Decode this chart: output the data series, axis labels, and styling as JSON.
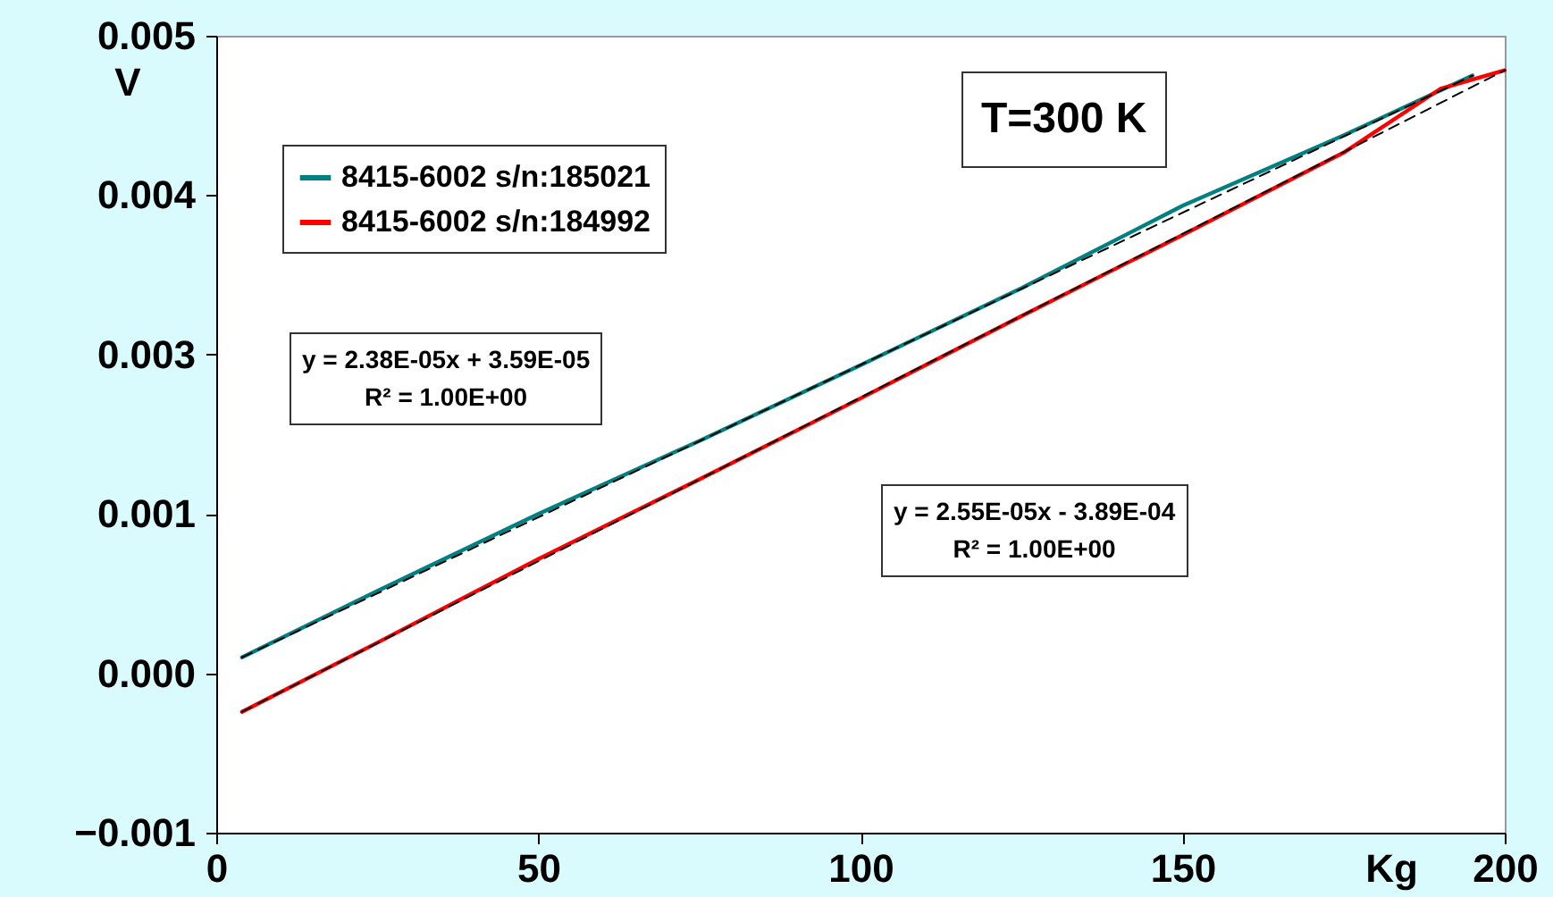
{
  "chart_data": {
    "type": "line",
    "xlabel": "Kg",
    "ylabel": "V",
    "xlim": [
      0,
      200
    ],
    "xticks": [
      0,
      50,
      100,
      150,
      200
    ],
    "ylim": [
      -0.001,
      0.005
    ],
    "yticks": [
      -0.001,
      {
        "value": 0.0002,
        "label": "0.000"
      },
      {
        "value": 0.0014,
        "label": "0.001"
      },
      {
        "value": 0.0026,
        "label": "0.003"
      },
      {
        "value": 0.0038,
        "label": "0.004"
      },
      0.005
    ],
    "series": [
      {
        "name": "8415-6002 s/n:185021",
        "color": "#008080",
        "x": [
          4,
          25,
          50,
          75,
          100,
          125,
          150,
          175,
          195
        ],
        "values": [
          0.00032,
          0.00082,
          0.0014,
          0.00195,
          0.00252,
          0.0031,
          0.00372,
          0.00425,
          0.0047
        ]
      },
      {
        "name": "8415-6002 s/n:184992",
        "color": "#ff0000",
        "x": [
          4,
          25,
          50,
          75,
          100,
          125,
          150,
          175,
          190,
          200
        ],
        "values": [
          -9e-05,
          0.00043,
          0.00106,
          0.00166,
          0.00227,
          0.00289,
          0.0035,
          0.00412,
          0.0046,
          0.00474
        ]
      },
      {
        "color": "#000000",
        "line_style": "dashed",
        "x": [
          4,
          195
        ],
        "values": [
          0.00032,
          0.0047
        ]
      },
      {
        "color": "#000000",
        "line_style": "dashed",
        "x": [
          4,
          200
        ],
        "values": [
          -9e-05,
          0.00474
        ]
      }
    ],
    "legend": "top left",
    "grid": false,
    "line_style": "solid",
    "marker": "none",
    "annotations": [
      "T=300 K",
      "y = 2.38E-05x + 3.59E-05\nR² = 1.00E+00",
      "y = 2.55E-05x - 3.89E-04\nR² = 1.00E+00"
    ]
  }
}
